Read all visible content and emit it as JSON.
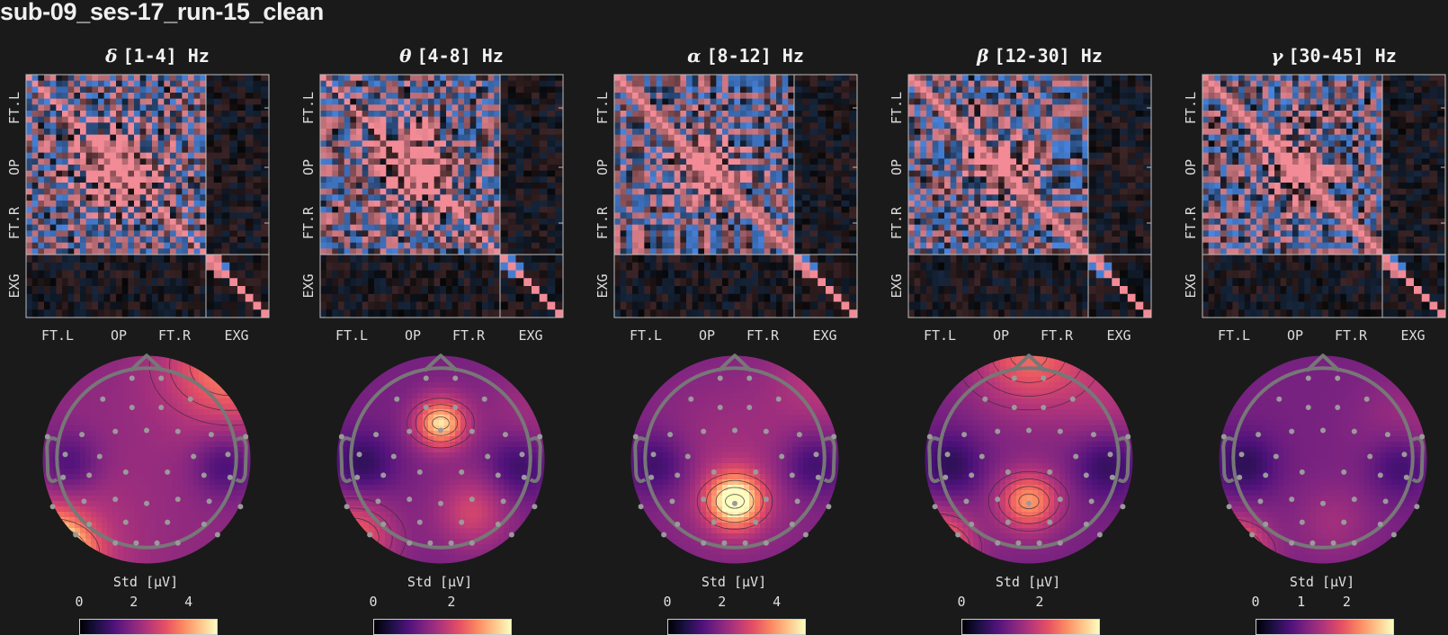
{
  "figure_title": "sub-09_ses-17_run-15_clean",
  "colors": {
    "background": "#1a1a1a",
    "matrix_positive": "#f28b96",
    "matrix_negative": "#4d8ff0",
    "matrix_zero": "#060606",
    "head_outline": "#777777",
    "sensor": "#9a9a9a"
  },
  "chart_data": [
    {
      "type": "heatmap",
      "band_symbol": "δ",
      "band_range": "[1-4] Hz",
      "matrix": {
        "x_groups": [
          "FT.L",
          "OP",
          "FT.R",
          "EXG"
        ],
        "y_groups": [
          "FT.L",
          "OP",
          "FT.R",
          "EXG"
        ]
      },
      "topomap": {
        "colormap": "magma",
        "colorbar_label": "Std [μV]",
        "ticks": [
          "0",
          "2",
          "4"
        ],
        "range": [
          0,
          5
        ]
      }
    },
    {
      "type": "heatmap",
      "band_symbol": "θ",
      "band_range": "[4-8] Hz",
      "matrix": {
        "x_groups": [
          "FT.L",
          "OP",
          "FT.R",
          "EXG"
        ],
        "y_groups": [
          "FT.L",
          "OP",
          "FT.R",
          "EXG"
        ]
      },
      "topomap": {
        "colormap": "magma",
        "colorbar_label": "Std [μV]",
        "ticks": [
          "0",
          "2"
        ],
        "range": [
          0,
          3.5
        ]
      }
    },
    {
      "type": "heatmap",
      "band_symbol": "α",
      "band_range": "[8-12] Hz",
      "matrix": {
        "x_groups": [
          "FT.L",
          "OP",
          "FT.R",
          "EXG"
        ],
        "y_groups": [
          "FT.L",
          "OP",
          "FT.R",
          "EXG"
        ]
      },
      "topomap": {
        "colormap": "magma",
        "colorbar_label": "Std [μV]",
        "ticks": [
          "0",
          "2",
          "4"
        ],
        "range": [
          0,
          5
        ]
      }
    },
    {
      "type": "heatmap",
      "band_symbol": "β",
      "band_range": "[12-30] Hz",
      "matrix": {
        "x_groups": [
          "FT.L",
          "OP",
          "FT.R",
          "EXG"
        ],
        "y_groups": [
          "FT.L",
          "OP",
          "FT.R",
          "EXG"
        ]
      },
      "topomap": {
        "colormap": "magma",
        "colorbar_label": "Std [μV]",
        "ticks": [
          "0",
          "2"
        ],
        "range": [
          0,
          3.5
        ]
      }
    },
    {
      "type": "heatmap",
      "band_symbol": "γ",
      "band_range": "[30-45] Hz",
      "matrix": {
        "x_groups": [
          "FT.L",
          "OP",
          "FT.R",
          "EXG"
        ],
        "y_groups": [
          "FT.L",
          "OP",
          "FT.R",
          "EXG"
        ]
      },
      "topomap": {
        "colormap": "magma",
        "colorbar_label": "Std [μV]",
        "ticks": [
          "0",
          "1",
          "2"
        ],
        "range": [
          0,
          3
        ]
      }
    }
  ]
}
